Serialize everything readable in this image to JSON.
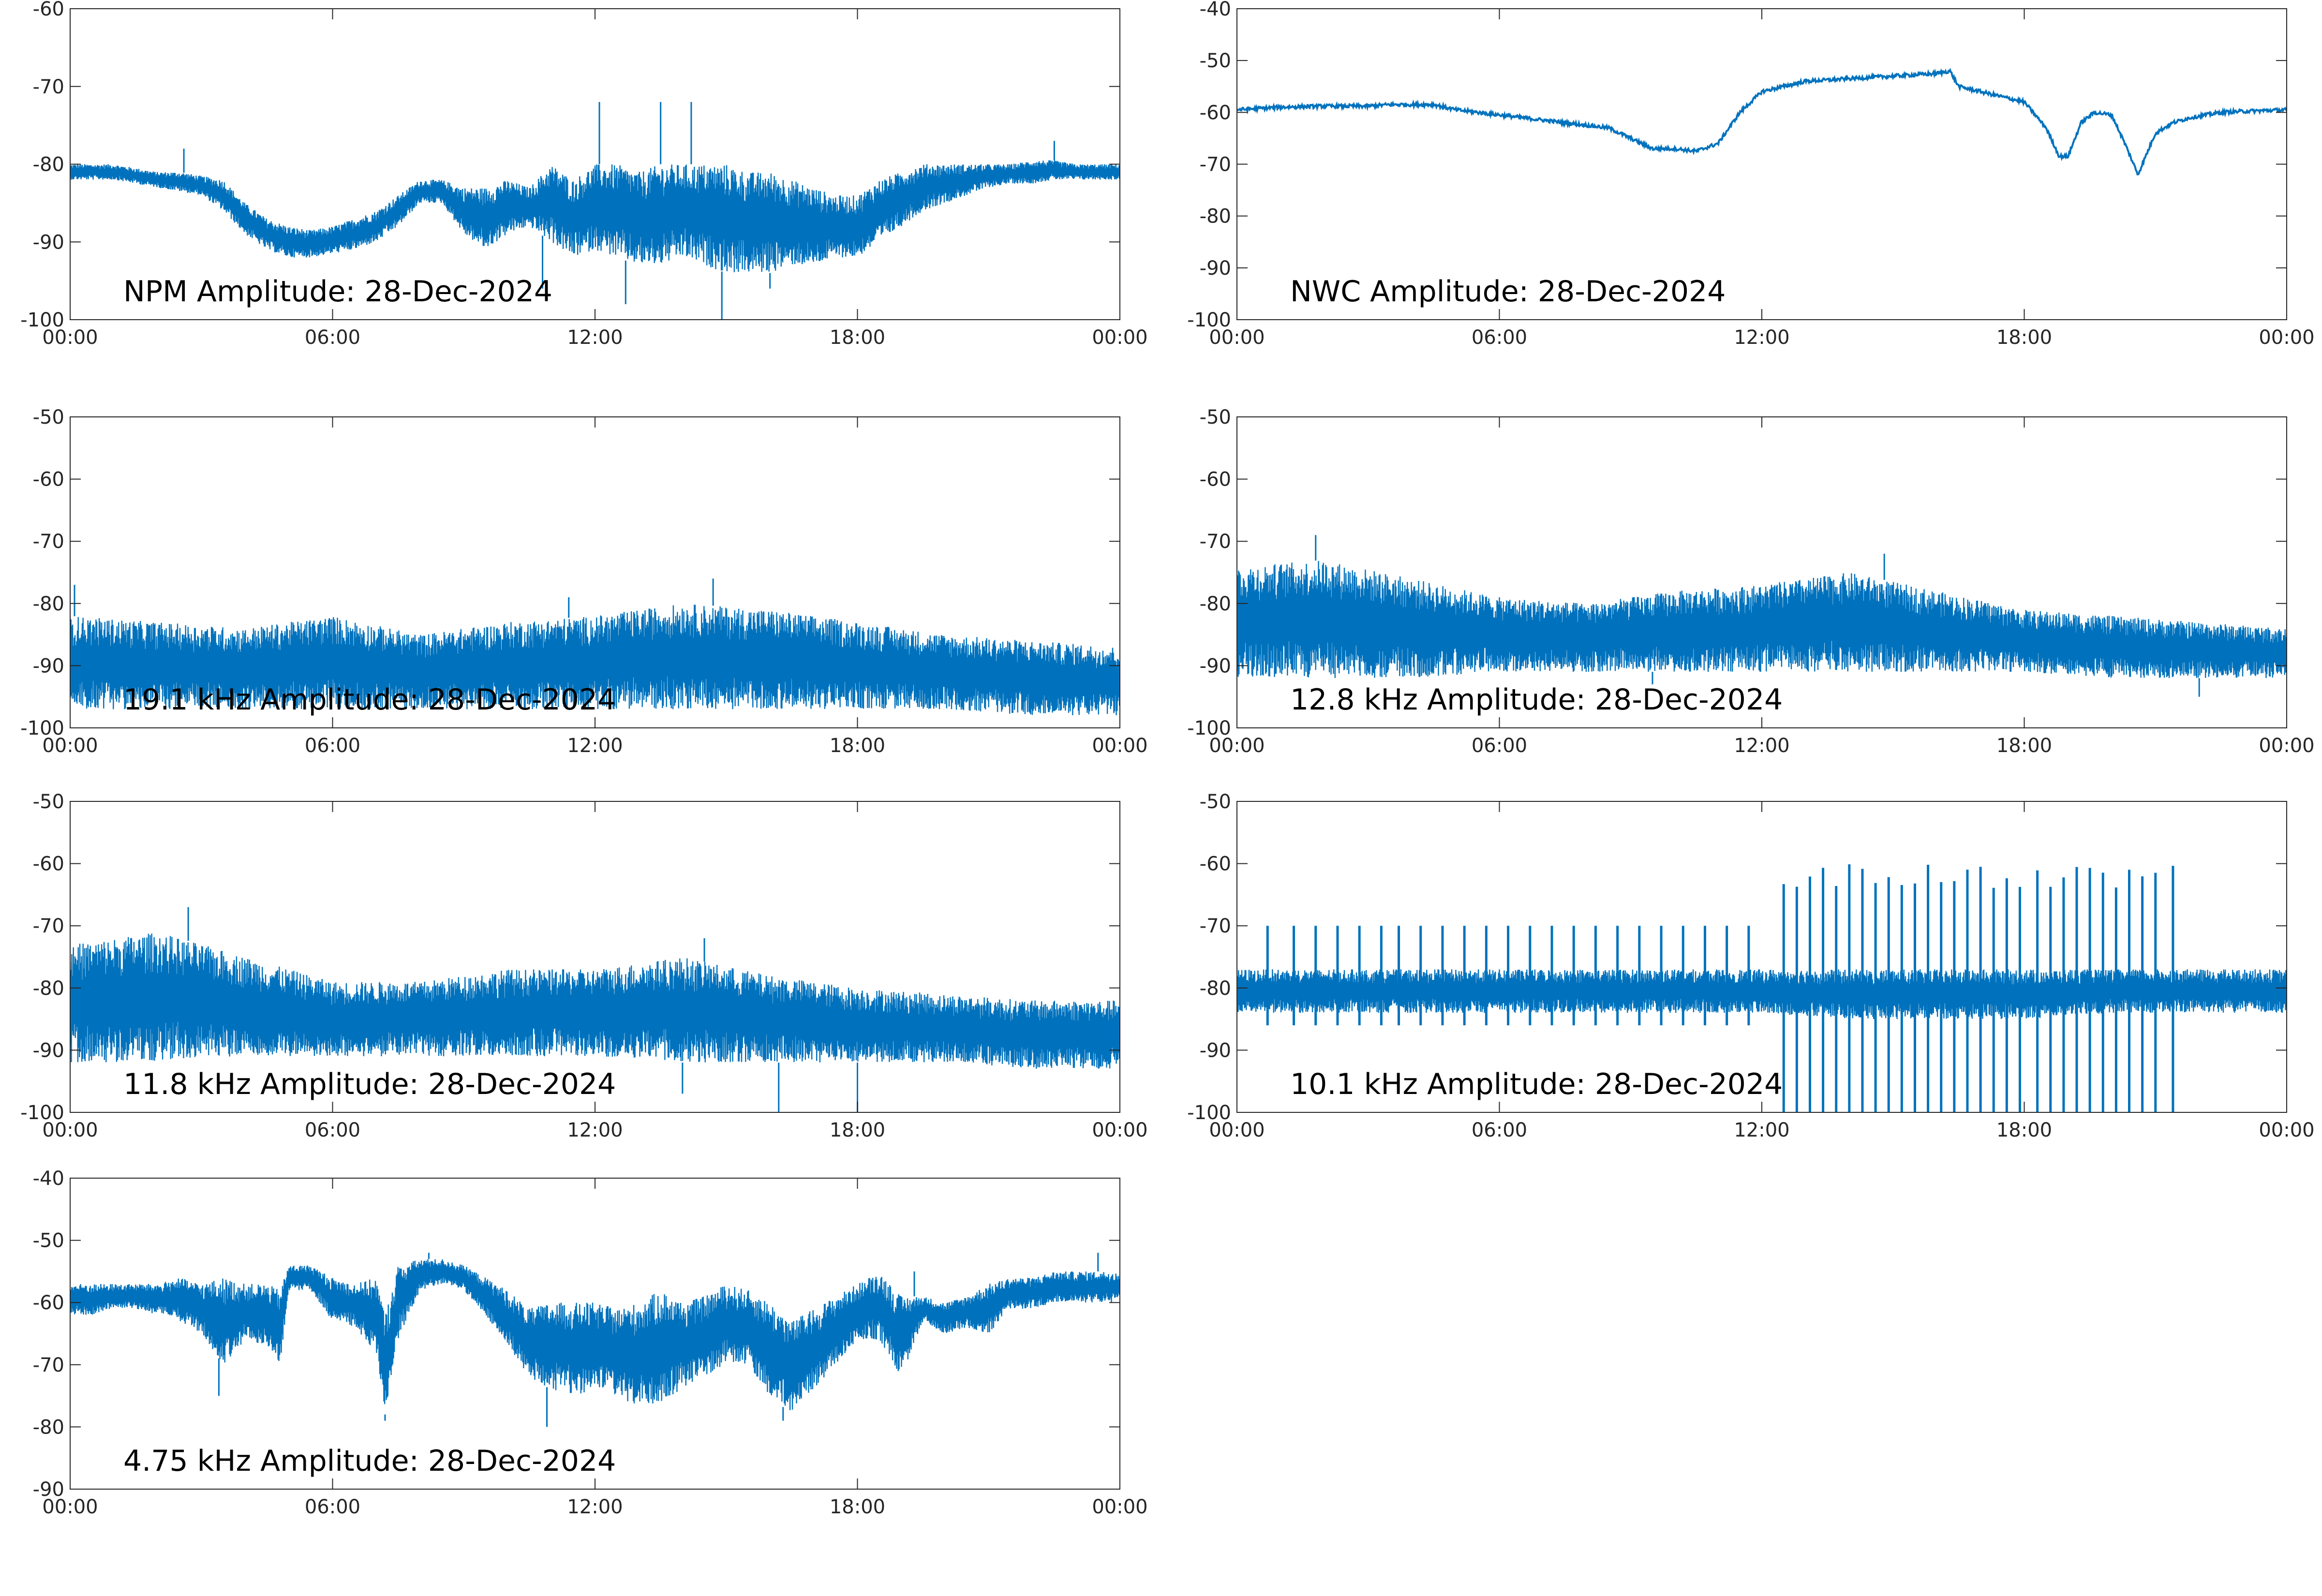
{
  "figure": {
    "line_color": "#0072bd",
    "axis_color": "#262626",
    "background": "#ffffff"
  },
  "chart_data": [
    {
      "type": "line",
      "title": "NPM Amplitude: 28-Dec-2024",
      "xlabel": "",
      "ylabel": "",
      "xticks": [
        "00:00",
        "06:00",
        "12:00",
        "18:00",
        "00:00"
      ],
      "xlim_hours": [
        0,
        24
      ],
      "yticks": [
        -60,
        -70,
        -80,
        -90,
        -100
      ],
      "ylim": [
        -100,
        -60
      ],
      "grid": false,
      "series": [
        {
          "x_hours": [
            0,
            0.5,
            1,
            1.5,
            2,
            2.5,
            3,
            3.5,
            4,
            4.5,
            5,
            5.5,
            6,
            6.5,
            7,
            7.5,
            8,
            8.5,
            9,
            9.5,
            10,
            10.5,
            11,
            11.5,
            12,
            12.5,
            13,
            13.5,
            14,
            14.5,
            15,
            15.5,
            16,
            16.5,
            17,
            17.5,
            18,
            18.5,
            19,
            19.5,
            20,
            20.5,
            21,
            21.5,
            22,
            22.5,
            23,
            23.5,
            24
          ],
          "low": [
            -82,
            -82,
            -82,
            -82.5,
            -83,
            -83.5,
            -84,
            -86,
            -89,
            -91,
            -92,
            -92,
            -91.5,
            -91,
            -90,
            -88,
            -85,
            -85,
            -89,
            -91,
            -89,
            -88,
            -90,
            -92,
            -91,
            -92,
            -93,
            -93,
            -92,
            -93,
            -94,
            -94,
            -94,
            -93,
            -93,
            -92,
            -92,
            -90,
            -88,
            -86,
            -85,
            -84,
            -83,
            -82.5,
            -82.5,
            -82,
            -82,
            -82,
            -82
          ],
          "high": [
            -80,
            -80,
            -80,
            -80.5,
            -81,
            -81,
            -81.5,
            -82,
            -85,
            -87,
            -88,
            -88.5,
            -88,
            -87,
            -86,
            -84,
            -82,
            -82,
            -83,
            -83,
            -82,
            -83,
            -80,
            -82,
            -80,
            -80,
            -81,
            -80,
            -80,
            -80,
            -80,
            -81,
            -81,
            -82,
            -83,
            -84,
            -84,
            -82,
            -81,
            -80,
            -80,
            -80,
            -80,
            -80,
            -79.5,
            -79.5,
            -80,
            -80,
            -80
          ],
          "spikes": [
            [
              2.6,
              -78
            ],
            [
              12.1,
              -72
            ],
            [
              13.5,
              -72
            ],
            [
              14.2,
              -72
            ],
            [
              12.7,
              -98
            ],
            [
              14.9,
              -100
            ],
            [
              10.8,
              -96
            ],
            [
              16.0,
              -96
            ],
            [
              22.5,
              -77
            ]
          ]
        }
      ]
    },
    {
      "type": "line",
      "title": "NWC Amplitude: 28-Dec-2024",
      "xlabel": "",
      "ylabel": "",
      "xticks": [
        "00:00",
        "06:00",
        "12:00",
        "18:00",
        "00:00"
      ],
      "xlim_hours": [
        0,
        24
      ],
      "yticks": [
        -40,
        -50,
        -60,
        -70,
        -80,
        -90,
        -100
      ],
      "ylim": [
        -100,
        -40
      ],
      "grid": false,
      "series": [
        {
          "x_hours": [
            0,
            1,
            2,
            3,
            3.5,
            4,
            4.5,
            5,
            6,
            7,
            8,
            8.5,
            9,
            9.5,
            10,
            10.5,
            11,
            11.5,
            12,
            12.5,
            13,
            14,
            15,
            16,
            16.3,
            16.5,
            17,
            17.5,
            18,
            18.5,
            18.8,
            19,
            19.3,
            19.6,
            20,
            20.3,
            20.6,
            21,
            21.4,
            21.8,
            22.5,
            23,
            24
          ],
          "values": [
            -59.5,
            -59,
            -58.8,
            -58.8,
            -58.5,
            -58.5,
            -58.5,
            -59.5,
            -60.5,
            -61.5,
            -62.5,
            -63,
            -65,
            -67,
            -67,
            -67.5,
            -66,
            -60,
            -56,
            -55,
            -54,
            -53.5,
            -53,
            -52.5,
            -52,
            -55,
            -56,
            -57,
            -58,
            -63,
            -68.5,
            -68.5,
            -62,
            -60,
            -60.5,
            -66,
            -72,
            -64,
            -62,
            -61,
            -60,
            -59.8,
            -59.5
          ]
        }
      ]
    },
    {
      "type": "line",
      "title": "19.1 kHz Amplitude: 28-Dec-2024",
      "xlabel": "",
      "ylabel": "",
      "xticks": [
        "00:00",
        "06:00",
        "12:00",
        "18:00",
        "00:00"
      ],
      "xlim_hours": [
        0,
        24
      ],
      "yticks": [
        -50,
        -60,
        -70,
        -80,
        -90,
        -100
      ],
      "ylim": [
        -100,
        -50
      ],
      "grid": false,
      "series": [
        {
          "x_hours": [
            0,
            2,
            4,
            6,
            8,
            10,
            12,
            14,
            16,
            18,
            20,
            22,
            24
          ],
          "low": [
            -97,
            -97,
            -97,
            -97,
            -97,
            -97,
            -97,
            -97,
            -97,
            -97,
            -97,
            -98,
            -98
          ],
          "high": [
            -82,
            -83,
            -84,
            -82,
            -85,
            -83,
            -82,
            -80,
            -81,
            -83,
            -85,
            -86,
            -87
          ],
          "spikes": [
            [
              0.1,
              -77
            ],
            [
              14.7,
              -76
            ],
            [
              11.4,
              -79
            ]
          ]
        }
      ]
    },
    {
      "type": "line",
      "title": "12.8 kHz Amplitude: 28-Dec-2024",
      "xlabel": "",
      "ylabel": "",
      "xticks": [
        "00:00",
        "06:00",
        "12:00",
        "18:00",
        "00:00"
      ],
      "xlim_hours": [
        0,
        24
      ],
      "yticks": [
        -50,
        -60,
        -70,
        -80,
        -90,
        -100
      ],
      "ylim": [
        -100,
        -50
      ],
      "grid": false,
      "series": [
        {
          "x_hours": [
            0,
            2,
            4,
            6,
            8,
            10,
            12,
            14,
            16,
            18,
            20,
            22,
            24
          ],
          "low": [
            -92,
            -92,
            -92,
            -91,
            -91,
            -91,
            -91,
            -91,
            -91,
            -91,
            -92,
            -92,
            -92
          ],
          "high": [
            -74,
            -73,
            -76,
            -79,
            -80,
            -78,
            -77,
            -75,
            -78,
            -81,
            -82,
            -83,
            -84
          ],
          "spikes": [
            [
              1.8,
              -69
            ],
            [
              14.8,
              -72
            ],
            [
              9.5,
              -93
            ],
            [
              22,
              -95
            ]
          ]
        }
      ]
    },
    {
      "type": "line",
      "title": "11.8 kHz Amplitude: 28-Dec-2024",
      "xlabel": "",
      "ylabel": "",
      "xticks": [
        "00:00",
        "06:00",
        "12:00",
        "18:00",
        "00:00"
      ],
      "xlim_hours": [
        0,
        24
      ],
      "yticks": [
        -50,
        -60,
        -70,
        -80,
        -90,
        -100
      ],
      "ylim": [
        -100,
        -50
      ],
      "grid": false,
      "series": [
        {
          "x_hours": [
            0,
            2,
            4,
            6,
            8,
            10,
            12,
            14,
            16,
            18,
            20,
            22,
            24
          ],
          "low": [
            -92,
            -92,
            -91,
            -91,
            -91,
            -91,
            -91,
            -92,
            -92,
            -92,
            -92,
            -93,
            -93
          ],
          "high": [
            -73,
            -71,
            -75,
            -79,
            -79,
            -77,
            -77,
            -75,
            -78,
            -80,
            -81,
            -82,
            -82
          ],
          "spikes": [
            [
              2.7,
              -67
            ],
            [
              14.5,
              -72
            ],
            [
              16.2,
              -100
            ],
            [
              18.0,
              -100
            ],
            [
              14.0,
              -97
            ]
          ]
        }
      ]
    },
    {
      "type": "line",
      "title": "10.1 kHz Amplitude: 28-Dec-2024",
      "xlabel": "",
      "ylabel": "",
      "xticks": [
        "00:00",
        "06:00",
        "12:00",
        "18:00",
        "00:00"
      ],
      "xlim_hours": [
        0,
        24
      ],
      "yticks": [
        -50,
        -60,
        -70,
        -80,
        -90,
        -100
      ],
      "ylim": [
        -100,
        -50
      ],
      "grid": false,
      "series": [
        {
          "x_hours": [
            0,
            2,
            4,
            6,
            8,
            10,
            12,
            14,
            16,
            18,
            20,
            22,
            24
          ],
          "low": [
            -84,
            -84,
            -84,
            -84,
            -84,
            -84,
            -84,
            -85,
            -85,
            -85,
            -84,
            -84,
            -84
          ],
          "high": [
            -77,
            -77,
            -77,
            -77,
            -77,
            -77,
            -77,
            -77,
            -77,
            -77,
            -77,
            -77,
            -77
          ],
          "bursts_early": [
            0.7,
            1.3,
            1.8,
            2.3,
            2.8,
            3.3,
            3.7,
            4.2,
            4.7,
            5.2,
            5.7,
            6.2,
            6.7,
            7.2,
            7.7,
            8.2,
            8.7,
            9.2,
            9.7,
            10.2,
            10.7,
            11.2,
            11.7
          ],
          "bursts_early_top": -70,
          "bursts_late": [
            12.5,
            12.8,
            13.1,
            13.4,
            13.7,
            14.0,
            14.3,
            14.6,
            14.9,
            15.2,
            15.5,
            15.8,
            16.1,
            16.4,
            16.7,
            17.0,
            17.3,
            17.6,
            17.9,
            18.3,
            18.6,
            18.9,
            19.2,
            19.5,
            19.8,
            20.1,
            20.4,
            20.7,
            21.0,
            21.4
          ],
          "bursts_late_top": -64,
          "bursts_late_bottom": -100
        }
      ]
    },
    {
      "type": "line",
      "title": "4.75 kHz Amplitude: 28-Dec-2024",
      "xlabel": "",
      "ylabel": "",
      "xticks": [
        "00:00",
        "06:00",
        "12:00",
        "18:00",
        "00:00"
      ],
      "xlim_hours": [
        0,
        24
      ],
      "yticks": [
        -40,
        -50,
        -60,
        -70,
        -80,
        -90
      ],
      "ylim": [
        -90,
        -40
      ],
      "grid": false,
      "series": [
        {
          "x_hours": [
            0,
            0.5,
            1,
            1.5,
            2,
            2.5,
            3,
            3.5,
            4,
            4.5,
            4.8,
            5,
            5.5,
            6,
            6.5,
            7,
            7.2,
            7.5,
            8,
            8.5,
            9,
            9.5,
            10,
            10.5,
            11,
            11.5,
            12,
            12.5,
            13,
            13.5,
            14,
            14.5,
            15,
            15.5,
            16,
            16.5,
            17,
            17.5,
            18,
            18.5,
            19,
            19.5,
            20,
            20.5,
            21,
            21.5,
            22,
            22.5,
            23,
            23.5,
            24
          ],
          "low": [
            -62,
            -62,
            -61,
            -61,
            -62,
            -63,
            -65,
            -70,
            -66,
            -67,
            -70,
            -58,
            -58,
            -63,
            -64,
            -68,
            -78,
            -66,
            -58,
            -57,
            -58,
            -62,
            -67,
            -72,
            -74,
            -75,
            -74,
            -75,
            -77,
            -76,
            -74,
            -72,
            -70,
            -70,
            -75,
            -78,
            -74,
            -70,
            -66,
            -66,
            -72,
            -63,
            -65,
            -64,
            -65,
            -61,
            -61,
            -60,
            -60,
            -60,
            -60
          ],
          "high": [
            -57,
            -57,
            -57,
            -57,
            -57,
            -56,
            -57,
            -56,
            -57,
            -57,
            -58,
            -54,
            -54,
            -56,
            -57,
            -56,
            -62,
            -54,
            -53,
            -53,
            -54,
            -56,
            -58,
            -61,
            -60,
            -60,
            -60,
            -61,
            -60,
            -58,
            -60,
            -59,
            -57,
            -58,
            -60,
            -63,
            -61,
            -59,
            -57,
            -55,
            -59,
            -59,
            -60,
            -59,
            -57,
            -56,
            -56,
            -55,
            -55,
            -55,
            -55
          ],
          "spikes": [
            [
              7.2,
              -79
            ],
            [
              3.4,
              -75
            ],
            [
              19.3,
              -55
            ],
            [
              10.9,
              -80
            ],
            [
              16.3,
              -79
            ],
            [
              8.2,
              -52
            ],
            [
              23.5,
              -52
            ]
          ]
        }
      ]
    }
  ]
}
